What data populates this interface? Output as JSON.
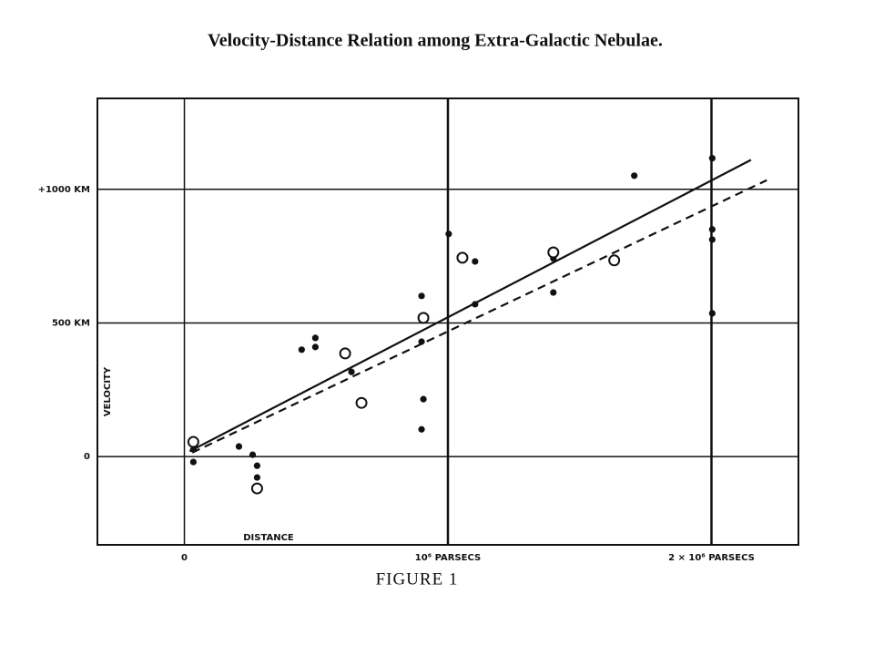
{
  "chart_data": {
    "type": "scatter",
    "title": "Velocity-Distance Relation among Extra-Galactic Nebulae.",
    "caption": "FIGURE 1",
    "xlabel": "DISTANCE",
    "ylabel": "VELOCITY",
    "xlim": [
      -330000,
      2330000
    ],
    "ylim": [
      -330,
      1340
    ],
    "xticks": [
      0,
      {
        "value": 1000000,
        "label": "10⁶ PARSECS"
      },
      {
        "value": 2000000,
        "label": "2 × 10⁶ PARSECS"
      }
    ],
    "yticks": [
      0,
      {
        "value": 500,
        "label": "500 KM"
      },
      {
        "value": 1000,
        "label": "+1000 KM"
      }
    ],
    "grid": true,
    "series": [
      {
        "style": "filled-dot",
        "color": "#111111",
        "x": [
          34000,
          34000,
          207000,
          259000,
          276000,
          276000,
          445000,
          497000,
          497000,
          634000,
          900000,
          900000,
          907000,
          900000,
          1003000,
          1103000,
          1103000,
          1400000,
          1400000,
          1707000,
          2003000,
          2003000,
          2003000,
          2003000
        ],
        "values": [
          -20,
          27,
          38,
          7,
          -34,
          -78,
          400,
          444,
          410,
          317,
          601,
          430,
          215,
          102,
          833,
          730,
          570,
          741,
          614,
          1051,
          1116,
          850,
          812,
          536
        ]
      },
      {
        "style": "open-circle",
        "color": "#111111",
        "x": [
          34000,
          276000,
          610000,
          672000,
          907000,
          1055000,
          1400000,
          1631000
        ],
        "values": [
          55,
          -119,
          386,
          201,
          519,
          744,
          764,
          734
        ]
      },
      {
        "style": "solid-line",
        "color": "#111111",
        "x": [
          20000,
          2150000
        ],
        "values": [
          20,
          1110
        ]
      },
      {
        "style": "dashed-line",
        "color": "#111111",
        "x": [
          30000,
          2210000
        ],
        "values": [
          15,
          1034
        ]
      }
    ]
  }
}
